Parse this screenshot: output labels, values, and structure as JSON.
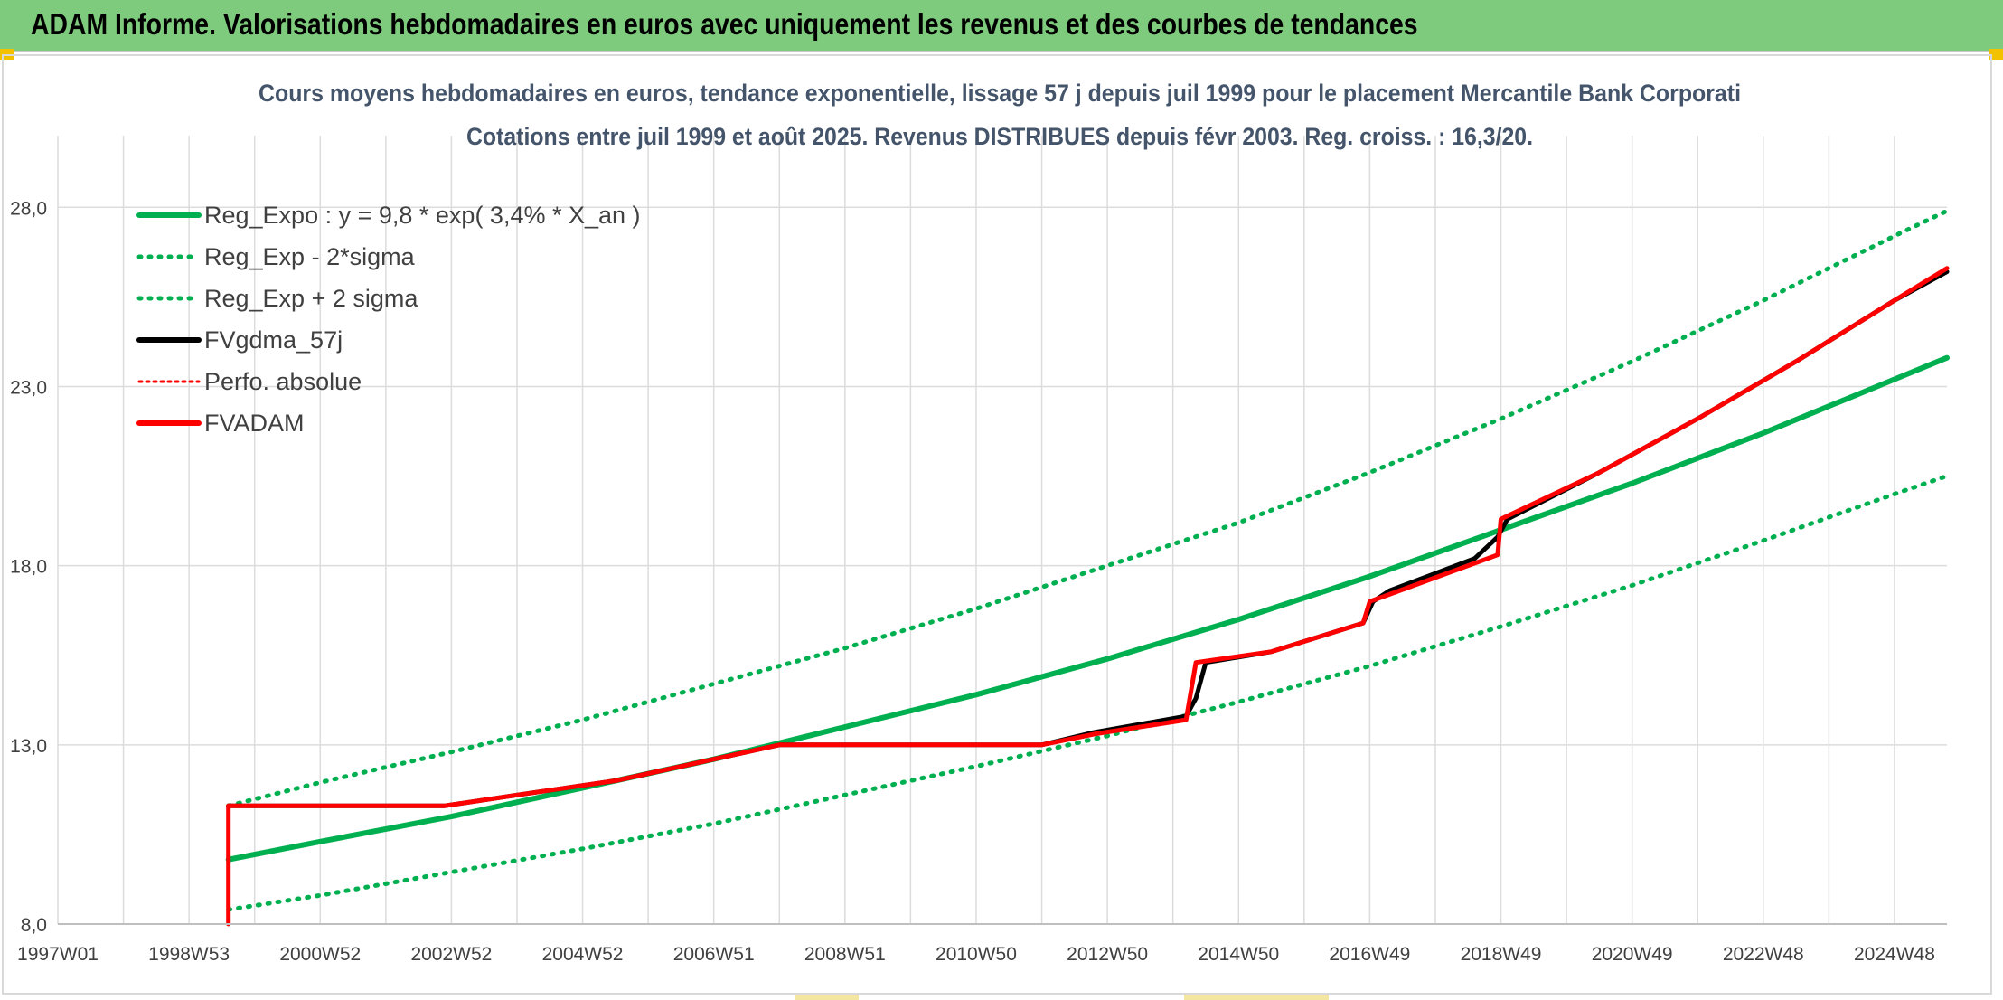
{
  "header": {
    "title": "ADAM Informe. Valorisations hebdomadaires en euros avec uniquement les revenus et des courbes de tendances"
  },
  "chart_data": {
    "type": "line",
    "title": "Cours moyens hebdomadaires en euros, tendance exponentielle, lissage 57 j depuis juil 1999 pour le placement Mercantile Bank Corporati",
    "subtitle": "Cotations entre juil 1999 et août 2025. Revenus DISTRIBUES depuis févr 2003. Reg. croiss. : 16,3/20.",
    "xlabel": "",
    "ylabel": "",
    "x_range": [
      1997.0,
      2025.8
    ],
    "ylim": [
      8.0,
      30.0
    ],
    "y_ticks": [
      8.0,
      13.0,
      18.0,
      23.0,
      28.0
    ],
    "y_tick_labels": [
      "8,0",
      "13,0",
      "18,0",
      "23,0",
      "28,0"
    ],
    "x_ticks": [
      1997.0,
      1999.0,
      2001.0,
      2003.0,
      2005.0,
      2007.0,
      2009.0,
      2011.0,
      2013.0,
      2015.0,
      2017.0,
      2019.0,
      2021.0,
      2023.0,
      2025.0
    ],
    "x_tick_labels": [
      "1997W01",
      "1998W53",
      "2000W52",
      "2002W52",
      "2004W52",
      "2006W51",
      "2008W51",
      "2010W50",
      "2012W50",
      "2014W50",
      "2016W49",
      "2018W49",
      "2020W49",
      "2022W48",
      "2024W48"
    ],
    "grid": true,
    "legend_position": "top-left",
    "series": [
      {
        "name": "Reg_Expo : y = 9,8 * exp( 3,4% *  X_an )",
        "color": "#00b050",
        "style": "solid",
        "x": [
          1999.6,
          2001.0,
          2003.0,
          2005.0,
          2007.0,
          2009.0,
          2011.0,
          2013.0,
          2015.0,
          2017.0,
          2019.0,
          2021.0,
          2023.0,
          2025.0,
          2025.8
        ],
        "y": [
          9.8,
          10.3,
          11.0,
          11.8,
          12.6,
          13.5,
          14.4,
          15.4,
          16.5,
          17.7,
          19.0,
          20.3,
          21.7,
          23.2,
          23.8
        ]
      },
      {
        "name": "Reg_Exp - 2*sigma",
        "color": "#00b050",
        "style": "dotted",
        "x": [
          1999.6,
          2001.0,
          2003.0,
          2005.0,
          2007.0,
          2009.0,
          2011.0,
          2013.0,
          2015.0,
          2017.0,
          2019.0,
          2021.0,
          2023.0,
          2025.0,
          2025.8
        ],
        "y": [
          8.4,
          8.8,
          9.45,
          10.1,
          10.8,
          11.6,
          12.4,
          13.25,
          14.2,
          15.2,
          16.3,
          17.45,
          18.7,
          20.0,
          20.5
        ]
      },
      {
        "name": "Reg_Exp + 2 sigma",
        "color": "#00b050",
        "style": "dotted",
        "x": [
          1999.6,
          2001.0,
          2003.0,
          2005.0,
          2007.0,
          2009.0,
          2011.0,
          2013.0,
          2015.0,
          2017.0,
          2019.0,
          2021.0,
          2023.0,
          2025.0,
          2025.8
        ],
        "y": [
          11.3,
          11.95,
          12.8,
          13.7,
          14.7,
          15.7,
          16.8,
          18.0,
          19.2,
          20.6,
          22.1,
          23.7,
          25.4,
          27.2,
          27.9
        ]
      },
      {
        "name": "FVgdma_57j",
        "color": "#000000",
        "style": "solid",
        "x": [
          1999.6,
          2002.9,
          2004.0,
          2005.5,
          2007.0,
          2008.0,
          2012.0,
          2012.8,
          2014.2,
          2014.35,
          2014.5,
          2015.5,
          2016.9,
          2017.05,
          2017.3,
          2018.6,
          2018.95,
          2019.1,
          2020.5,
          2022.0,
          2023.5,
          2025.0,
          2025.8
        ],
        "y": [
          11.3,
          11.3,
          11.6,
          12.0,
          12.6,
          13.0,
          13.0,
          13.35,
          13.8,
          14.3,
          15.3,
          15.6,
          16.4,
          17.0,
          17.3,
          18.2,
          18.8,
          19.3,
          20.6,
          22.1,
          23.7,
          25.4,
          26.2
        ]
      },
      {
        "name": "Perfo. absolue",
        "color": "#ff0000",
        "style": "dotted",
        "x": [
          1999.6,
          2002.9,
          2004.0,
          2005.5,
          2007.0,
          2008.0,
          2012.0,
          2012.8,
          2014.2,
          2014.35,
          2015.5,
          2016.9,
          2017.0,
          2018.95,
          2019.0,
          2020.5,
          2022.0,
          2023.5,
          2025.0,
          2025.8
        ],
        "y": [
          11.3,
          11.3,
          11.6,
          12.0,
          12.6,
          13.0,
          13.0,
          13.3,
          13.7,
          15.3,
          15.6,
          16.4,
          17.0,
          18.3,
          19.3,
          20.6,
          22.1,
          23.7,
          25.4,
          26.3
        ]
      },
      {
        "name": "FVADAM",
        "color": "#ff0000",
        "style": "solid",
        "x": [
          1999.6,
          1999.6,
          2002.9,
          2004.0,
          2005.5,
          2007.0,
          2008.0,
          2012.0,
          2012.8,
          2014.2,
          2014.35,
          2015.5,
          2016.9,
          2017.0,
          2018.95,
          2019.0,
          2020.5,
          2022.0,
          2023.5,
          2025.0,
          2025.8
        ],
        "y": [
          8.0,
          11.3,
          11.3,
          11.6,
          12.0,
          12.6,
          13.0,
          13.0,
          13.3,
          13.7,
          15.3,
          15.6,
          16.4,
          17.0,
          18.3,
          19.3,
          20.6,
          22.1,
          23.7,
          25.4,
          26.3
        ]
      }
    ]
  }
}
